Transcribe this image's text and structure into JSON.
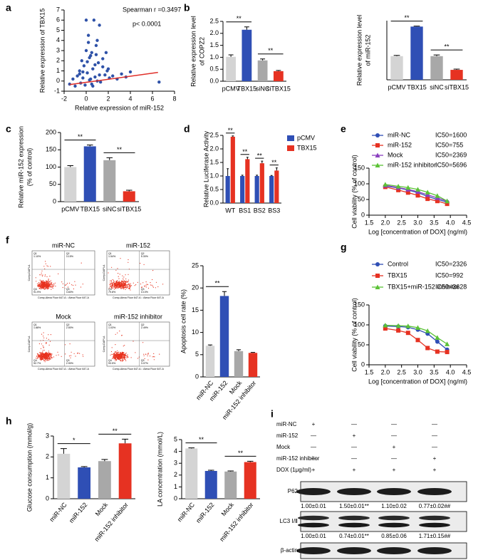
{
  "panel_labels": [
    "a",
    "b",
    "c",
    "d",
    "e",
    "f",
    "g",
    "h",
    "i"
  ],
  "chart_data": [
    {
      "type": "scatter",
      "xlabel": "Relative expression of miR-152",
      "ylabel": [
        "Relative expression of TBX15"
      ],
      "annotations": [
        "Spearman r =0.3497",
        "p< 0.0001"
      ],
      "x": [
        -1.5,
        -1.2,
        -1.0,
        -0.8,
        -0.6,
        -0.5,
        -0.4,
        -0.3,
        -0.2,
        -0.1,
        0,
        0.1,
        0.2,
        0.3,
        0.4,
        0.5,
        0.6,
        0.7,
        0.8,
        0.9,
        1.0,
        1.1,
        1.2,
        1.3,
        1.5,
        1.7,
        1.9,
        2.1,
        2.4,
        2.8,
        3.2,
        3.6,
        4.0,
        6.6,
        0.0,
        0.2,
        0.5,
        0.8,
        1.0,
        1.5,
        -0.3,
        0.3,
        0.6,
        1.2,
        0.1,
        0.4,
        1.8,
        2.0,
        -0.6,
        0.9
      ],
      "values": [
        -0.3,
        0.2,
        -0.5,
        0.5,
        1.0,
        -0.2,
        2.0,
        0.3,
        1.5,
        -0.4,
        3.0,
        0.8,
        4.5,
        0.1,
        2.5,
        -0.3,
        1.2,
        6.0,
        0.4,
        3.5,
        0.0,
        1.8,
        5.5,
        -0.1,
        2.2,
        0.6,
        1.0,
        0.3,
        0.5,
        0.2,
        0.7,
        0.4,
        0.9,
        -0.1,
        6.0,
        3.8,
        2.8,
        1.6,
        4.0,
        1.4,
        0.9,
        2.3,
        -0.5,
        0.6,
        1.9,
        0.2,
        2.8,
        1.2,
        0.7,
        2.6
      ],
      "color": "#2f52a8",
      "trendline": {
        "x": [
          -1.5,
          6.5
        ],
        "values": [
          -0.35,
          0.85
        ],
        "color": "#e0302a"
      },
      "xlim": [
        -2,
        8
      ],
      "xticks": [
        -2,
        0,
        2,
        4,
        6,
        8
      ],
      "ylim": [
        -1,
        7
      ],
      "yticks": [
        -1,
        0,
        1,
        2,
        3,
        4,
        5,
        6,
        7
      ]
    },
    {
      "type": "bar",
      "ylabel": [
        "Relative expression level",
        "of COPZ2"
      ],
      "categories": [
        "pCMV",
        "TBX15",
        "siNC",
        "siTBX15"
      ],
      "values": [
        1.02,
        2.15,
        0.87,
        0.42
      ],
      "errors": [
        0.08,
        0.12,
        0.06,
        0.03
      ],
      "colors": [
        "#d4d4d4",
        "#2f4fb5",
        "#a8a8a8",
        "#e63222"
      ],
      "ylim": [
        0,
        2.5
      ],
      "yticks": [
        {
          "value": 0,
          "label": "0.0"
        },
        0.5,
        {
          "value": 1,
          "label": "1.0"
        },
        1.5,
        {
          "value": 2,
          "label": "2.0"
        },
        2.5
      ],
      "significance": [
        {
          "between": [
            "pCMV",
            "TBX15"
          ],
          "label": "**"
        },
        {
          "between": [
            "siNC",
            "siTBX15"
          ],
          "label": "**"
        }
      ]
    },
    {
      "type": "bar",
      "ylabel": [
        "Relative expression level",
        "of miR-152"
      ],
      "categories": [
        "pCMV",
        "TBX15",
        "siNC",
        "siTBX15"
      ],
      "values": [
        1.0,
        2.25,
        1.0,
        0.42
      ],
      "errors": [
        0.03,
        0.02,
        0.05,
        0.03
      ],
      "colors": [
        "#d4d4d4",
        "#2f4fb5",
        "#a8a8a8",
        "#e63222"
      ],
      "ylim": [
        0,
        2.5
      ],
      "significance": [
        {
          "between": [
            "pCMV",
            "TBX15"
          ],
          "label": "**"
        },
        {
          "between": [
            "siNC",
            "siTBX15"
          ],
          "label": "**"
        }
      ]
    },
    {
      "type": "bar",
      "ylabel": [
        "Relative miR-152 expression",
        "(% of control)"
      ],
      "categories": [
        "pCMV",
        "TBX15",
        "siNC",
        "siTBX15"
      ],
      "values": [
        100,
        160,
        120,
        30
      ],
      "errors": [
        4,
        4,
        7,
        3
      ],
      "colors": [
        "#d4d4d4",
        "#2f4fb5",
        "#a8a8a8",
        "#e63222"
      ],
      "ylim": [
        0,
        200
      ],
      "yticks": [
        0,
        50,
        100,
        150,
        200
      ],
      "significance": [
        {
          "between": [
            "pCMV",
            "TBX15"
          ],
          "label": "**"
        },
        {
          "between": [
            "siNC",
            "siTBX15"
          ],
          "label": "**"
        }
      ]
    },
    {
      "type": "grouped-bar",
      "ylabel": [
        "Relative Luciferase Activity"
      ],
      "categories": [
        "WT",
        "BS1",
        "BS2",
        "BS3"
      ],
      "series": [
        {
          "name": "pCMV",
          "color": "#2f4fb5",
          "values": [
            1.0,
            1.0,
            1.0,
            1.0
          ],
          "errors": [
            0.27,
            0.03,
            0.03,
            0.02
          ]
        },
        {
          "name": "TBX15",
          "color": "#e63222",
          "values": [
            2.45,
            1.62,
            1.47,
            1.2
          ],
          "errors": [
            0.03,
            0.07,
            0.08,
            0.1
          ]
        }
      ],
      "significance_labels": [
        "**",
        "**",
        "**",
        "**"
      ],
      "legend": "right",
      "ylim": [
        0,
        2.5
      ],
      "yticks": [
        {
          "value": 0,
          "label": "0.0"
        },
        0.5,
        {
          "value": 1,
          "label": "1.0"
        },
        1.5,
        {
          "value": 2,
          "label": "2.0"
        },
        2.5
      ]
    },
    {
      "type": "line",
      "xlabel": "Log [concentration of DOX] (ng/ml)",
      "ylabel": [
        "Cell viability (% of control)"
      ],
      "x": [
        2.0,
        2.4,
        2.7,
        3.0,
        3.3,
        3.6,
        3.9
      ],
      "series": [
        {
          "name": "miR-NC",
          "annotation": "IC50=1600",
          "color": "#2f4fb5",
          "marker": "circle",
          "values": [
            93,
            87,
            80,
            72,
            60,
            50,
            42
          ]
        },
        {
          "name": "miR-152",
          "annotation": "IC50=755",
          "color": "#e63222",
          "marker": "square",
          "values": [
            90,
            80,
            72,
            63,
            52,
            45,
            36
          ]
        },
        {
          "name": "Mock",
          "annotation": "IC50=2369",
          "color": "#8a3fbf",
          "marker": "triangle",
          "values": [
            95,
            88,
            82,
            75,
            65,
            55,
            45
          ]
        },
        {
          "name": "miR-152 inhibitor",
          "annotation": "IC50=5696",
          "color": "#5bc236",
          "marker": "triangle",
          "values": [
            98,
            92,
            88,
            82,
            73,
            62,
            45
          ]
        }
      ],
      "legend": "top-left",
      "xlim": [
        1.5,
        4.5
      ],
      "xticks": [
        1.5,
        {
          "value": 2,
          "label": "2.0"
        },
        2.5,
        {
          "value": 3,
          "label": "3.0"
        },
        3.5,
        {
          "value": 4,
          "label": "4.0"
        },
        4.5
      ],
      "ylim": [
        0,
        150
      ],
      "yticks": [
        0,
        50,
        100,
        150
      ]
    },
    {
      "type": "bar",
      "ylabel": [
        "Apoptosis cell rate (%)"
      ],
      "categories": [
        "miR-NC",
        "miR-152",
        "Mock",
        "miR-152 inhibitor"
      ],
      "values": [
        7,
        18.2,
        5.8,
        5.4
      ],
      "errors": [
        0.2,
        1.0,
        0.3,
        0.1
      ],
      "colors": [
        "#d4d4d4",
        "#2f4fb5",
        "#a8a8a8",
        "#e63222"
      ],
      "rotate_labels": true,
      "ylim": [
        0,
        25
      ],
      "yticks": [
        0,
        5,
        10,
        15,
        20,
        25
      ],
      "significance": [
        {
          "between": [
            "miR-NC",
            "miR-152"
          ],
          "label": "**"
        }
      ]
    },
    {
      "type": "line",
      "xlabel": "Log [concentration of DOX] (ng/ml)",
      "ylabel": [
        "Cell viability (% of control)"
      ],
      "x": [
        2.0,
        2.4,
        2.7,
        3.0,
        3.3,
        3.6,
        3.9
      ],
      "series": [
        {
          "name": "Control",
          "annotation": "IC50=2326",
          "color": "#2f4fb5",
          "marker": "circle",
          "values": [
            97,
            96,
            94,
            88,
            78,
            58,
            38
          ]
        },
        {
          "name": "TBX15",
          "annotation": "IC50=992",
          "color": "#e63222",
          "marker": "square",
          "values": [
            91,
            86,
            80,
            62,
            42,
            33,
            32
          ]
        },
        {
          "name": "TBX15+miR-152 inhibitor",
          "annotation": "IC50=3628",
          "color": "#5bc236",
          "marker": "triangle",
          "values": [
            99,
            98,
            97,
            93,
            85,
            68,
            52
          ]
        }
      ],
      "legend": "top-left",
      "xlim": [
        1.5,
        4.5
      ],
      "xticks": [
        1.5,
        {
          "value": 2,
          "label": "2.0"
        },
        2.5,
        {
          "value": 3,
          "label": "3.0"
        },
        3.5,
        {
          "value": 4,
          "label": "4.0"
        },
        4.5
      ],
      "ylim": [
        0,
        150
      ],
      "yticks": [
        0,
        50,
        100,
        150
      ]
    },
    {
      "type": "bar",
      "ylabel": [
        "Glucose consumption (mmol/g)"
      ],
      "categories": [
        "miR-NC",
        "miR-152",
        "Mock",
        "miR-152 inhibitor"
      ],
      "values": [
        2.15,
        1.5,
        1.8,
        2.65
      ],
      "errors": [
        0.25,
        0.04,
        0.08,
        0.2
      ],
      "colors": [
        "#d4d4d4",
        "#2f4fb5",
        "#a8a8a8",
        "#e63222"
      ],
      "rotate_labels": true,
      "ylim": [
        0,
        3
      ],
      "yticks": [
        0,
        1,
        2,
        3
      ],
      "significance": [
        {
          "between": [
            "miR-NC",
            "miR-152"
          ],
          "label": "*"
        },
        {
          "between": [
            "Mock",
            "miR-152 inhibitor"
          ],
          "label": "**"
        }
      ]
    },
    {
      "type": "bar",
      "ylabel": [
        "LA concentration (mmol/L)"
      ],
      "categories": [
        "miR-NC",
        "miR-152",
        "Mock",
        "miR-152 inhibitor"
      ],
      "values": [
        4.25,
        2.35,
        2.3,
        3.1
      ],
      "errors": [
        0.05,
        0.06,
        0.05,
        0.07
      ],
      "colors": [
        "#d4d4d4",
        "#2f4fb5",
        "#a8a8a8",
        "#e63222"
      ],
      "rotate_labels": true,
      "ylim": [
        0,
        5
      ],
      "yticks": [
        0,
        1,
        2,
        3,
        4,
        5
      ],
      "significance": [
        {
          "between": [
            "miR-NC",
            "miR-152"
          ],
          "label": "**"
        },
        {
          "between": [
            "Mock",
            "miR-152 inhibitor"
          ],
          "label": "**"
        }
      ]
    }
  ],
  "flow_plots": {
    "xlabel": "Comp-Alexa Fluor 647-A :: Alexa Fluor 647-A",
    "ylabel": "Comp-DAPI-A",
    "plots": [
      {
        "title": "miR-NC",
        "quadrants": [
          {
            "name": "Q1",
            "percent": "1.10%"
          },
          {
            "name": "Q2",
            "percent": "3.15%"
          },
          {
            "name": "Q3",
            "percent": "3.60%"
          },
          {
            "name": "Q4",
            "percent": "91.9%"
          }
        ]
      },
      {
        "title": "miR-152",
        "quadrants": [
          {
            "name": "Q1",
            "percent": "1.54%"
          },
          {
            "name": "Q2",
            "percent": "5.30%"
          },
          {
            "name": "Q3",
            "percent": "13.0%"
          },
          {
            "name": "Q4",
            "percent": "79.8%"
          }
        ]
      },
      {
        "title": "Mock",
        "quadrants": [
          {
            "name": "Q1",
            "percent": "1.88%"
          },
          {
            "name": "Q2",
            "percent": "2.50%"
          },
          {
            "name": "Q3",
            "percent": "2.90%"
          },
          {
            "name": "Q4",
            "percent": "92.7%"
          }
        ]
      },
      {
        "title": "miR-152 inhibitor",
        "quadrants": [
          {
            "name": "Q1",
            "percent": "1.03%"
          },
          {
            "name": "Q2",
            "percent": "2.49%"
          },
          {
            "name": "Q3",
            "percent": "3.07%"
          },
          {
            "name": "Q4",
            "percent": "93.5%"
          }
        ]
      }
    ]
  },
  "western_blot": {
    "row_labels": [
      "miR-NC",
      "miR-152",
      "Mock",
      "miR-152 inhibitor",
      "DOX (1μg/ml)"
    ],
    "signs": [
      [
        "+",
        "—",
        "—",
        "—"
      ],
      [
        "—",
        "+",
        "—",
        "—"
      ],
      [
        "—",
        "—",
        "+",
        "—"
      ],
      [
        "—",
        "—",
        "—",
        "+"
      ],
      [
        "+",
        "+",
        "+",
        "+"
      ]
    ],
    "bands": [
      {
        "name": "P62",
        "quant": [
          "1.00±0.01",
          "1.50±0.01**",
          "1.10±0.02",
          "0.77±0.02##"
        ]
      },
      {
        "name": "LC3 Ⅰ/Ⅱ",
        "quant": [
          "1.00±0.01",
          "0.74±0.01**",
          "0.85±0.06",
          "1.71±0.15##"
        ]
      },
      {
        "name": "β-actin"
      }
    ]
  }
}
